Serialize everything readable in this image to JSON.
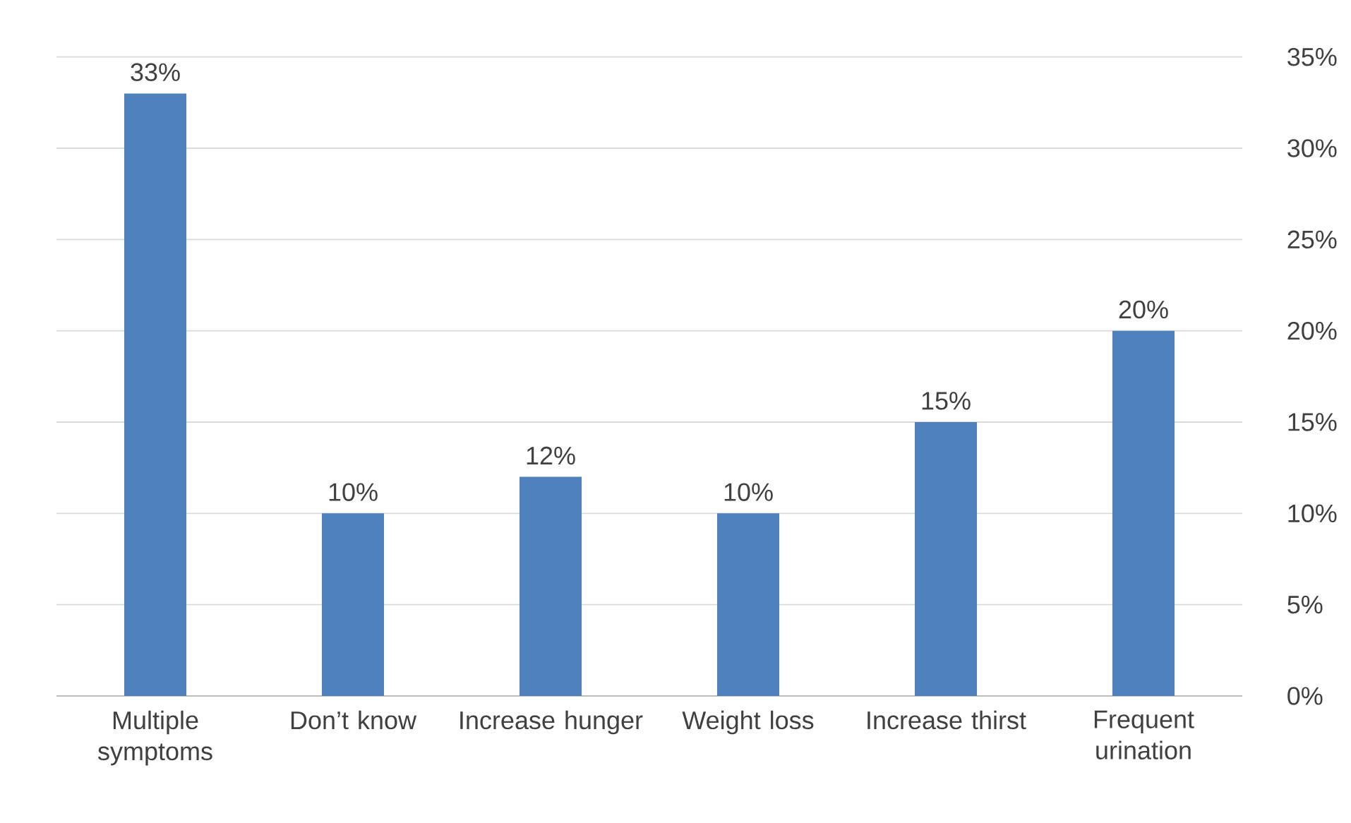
{
  "chart_data": {
    "type": "bar",
    "categories": [
      "Multiple symptoms",
      "Don’t know",
      "Increase hunger",
      "Weight loss",
      "Increase thirst",
      "Frequent urination"
    ],
    "values": [
      33,
      10,
      12,
      10,
      15,
      20
    ],
    "value_labels": [
      "33%",
      "10%",
      "12%",
      "10%",
      "15%",
      "20%"
    ],
    "color": "#4f81bd",
    "ylim": [
      0,
      35
    ],
    "yticks": [
      {
        "value": 0,
        "label": "0%"
      },
      {
        "value": 5,
        "label": "5%"
      },
      {
        "value": 10,
        "label": "10%"
      },
      {
        "value": 15,
        "label": "15%"
      },
      {
        "value": 20,
        "label": "20%"
      },
      {
        "value": 25,
        "label": "25%"
      },
      {
        "value": 30,
        "label": "30%"
      },
      {
        "value": 35,
        "label": "35%"
      }
    ],
    "grid": "y"
  }
}
